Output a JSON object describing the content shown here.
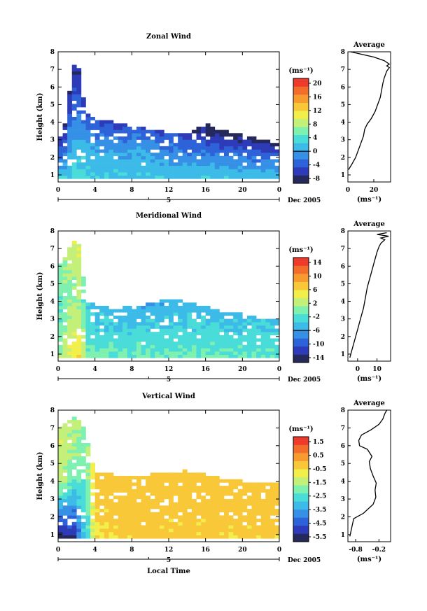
{
  "figure": {
    "colormap": [
      "#25285a",
      "#2d3bb8",
      "#2e62d8",
      "#3590e6",
      "#3cbbe8",
      "#49dcd8",
      "#7ef0b0",
      "#c4f07a",
      "#f2ee4a",
      "#f8c838",
      "#f79a30",
      "#f26c2c",
      "#ee3a2a"
    ],
    "date_label": "Dec 2005",
    "xlabel_bottom": "Local Time",
    "average_title": "Average",
    "unit_label": "(ms⁻¹)",
    "ylabel": "Height (km)"
  },
  "chart_data": [
    {
      "type": "heatmap",
      "title": "Zonal Wind",
      "xlabel": "",
      "ylabel": "Height (km)",
      "x_ticks": [
        "0",
        "4",
        "8",
        "12",
        "16",
        "20",
        "0"
      ],
      "x_range": [
        0,
        24
      ],
      "day_label": "5",
      "y_ticks": [
        "1",
        "2",
        "3",
        "4",
        "5",
        "6",
        "7",
        "8"
      ],
      "y_range": [
        0.6,
        8
      ],
      "colorbar": {
        "ticks": [
          "20",
          "16",
          "12",
          "8",
          "4",
          "0",
          "-4",
          "-8"
        ],
        "range": [
          -10,
          22
        ],
        "zero_line": 0
      },
      "grid": {
        "cols": 48,
        "top": 7.5,
        "heights": [
          1.0,
          1.4,
          2.0,
          3.0,
          4.0,
          5.0,
          6.0,
          7.0
        ],
        "cells": [
          [
            0,
            3,
            2,
            -4,
            -8
          ],
          [
            0.5,
            3.5,
            2,
            -4,
            -8
          ],
          [
            1,
            4.5,
            2,
            -3,
            -8
          ],
          [
            1.5,
            7.2,
            3,
            -2,
            -8
          ],
          [
            2,
            7.5,
            4,
            -2,
            -8
          ],
          [
            2.5,
            6.5,
            4,
            -1,
            -8
          ],
          [
            3,
            4.5,
            3,
            0,
            -6
          ],
          [
            4,
            4.2,
            2,
            0,
            -6
          ],
          [
            6,
            4.0,
            2,
            0,
            -6
          ],
          [
            8,
            3.8,
            2,
            0,
            -5
          ],
          [
            10,
            3.6,
            2,
            0,
            -5
          ],
          [
            12,
            3.4,
            2,
            -1,
            -5
          ],
          [
            14,
            3.3,
            2,
            -2,
            -6
          ],
          [
            16,
            3.9,
            2,
            -3,
            -9
          ],
          [
            18,
            3.5,
            2,
            -3,
            -9
          ],
          [
            20,
            3.3,
            2,
            -3,
            -9
          ],
          [
            22,
            3.0,
            2,
            -3,
            -9
          ],
          [
            24,
            2.8,
            2,
            -3,
            -9
          ]
        ]
      },
      "average": {
        "x_ticks": [
          "0",
          "20"
        ],
        "x_range": [
          0,
          33
        ],
        "xlabel": "(ms⁻¹)",
        "profile_x": [
          0.5,
          3,
          6,
          8,
          10,
          12,
          13,
          15,
          18,
          21,
          23,
          25,
          26,
          27,
          28,
          29,
          30,
          31,
          32,
          30,
          32,
          28,
          20,
          8,
          2
        ],
        "profile_h": [
          1.3,
          1.6,
          2.0,
          2.4,
          2.8,
          3.2,
          3.6,
          3.9,
          4.2,
          4.6,
          5.0,
          5.4,
          5.8,
          6.2,
          6.5,
          6.7,
          6.9,
          7.0,
          7.1,
          7.2,
          7.3,
          7.5,
          7.7,
          7.9,
          8.0
        ]
      }
    },
    {
      "type": "heatmap",
      "title": "Meridional Wind",
      "xlabel": "",
      "ylabel": "Height (km)",
      "x_ticks": [
        "0",
        "4",
        "8",
        "12",
        "16",
        "20",
        "0"
      ],
      "x_range": [
        0,
        24
      ],
      "day_label": "5",
      "y_ticks": [
        "1",
        "2",
        "3",
        "4",
        "5",
        "6",
        "7",
        "8"
      ],
      "y_range": [
        0.6,
        8
      ],
      "colorbar": {
        "ticks": [
          "14",
          "10",
          "6",
          "2",
          "-2",
          "-6",
          "-10",
          "-14"
        ],
        "range": [
          -16,
          16
        ],
        "zero_line": 0
      },
      "grid": {
        "cols": 48,
        "top": 7.6,
        "heights": [
          1.0,
          1.4,
          2.0,
          3.0,
          4.0,
          5.0,
          6.0,
          7.0
        ],
        "cells": [
          [
            0,
            6.0,
            1,
            -2,
            0
          ],
          [
            0.5,
            6.3,
            2,
            -1,
            1
          ],
          [
            1,
            6.6,
            4,
            0,
            2
          ],
          [
            1.5,
            7.4,
            5,
            1,
            3
          ],
          [
            2,
            7.6,
            6,
            1,
            4
          ],
          [
            2.5,
            7.0,
            6,
            1,
            3
          ],
          [
            3,
            4.0,
            0,
            -2,
            -4
          ],
          [
            4,
            3.8,
            0,
            -3,
            -5
          ],
          [
            6,
            3.6,
            -1,
            -3,
            -5
          ],
          [
            8,
            3.7,
            -1,
            -3,
            -6
          ],
          [
            10,
            3.9,
            -1,
            -3,
            -6
          ],
          [
            12,
            4.1,
            -1,
            -3,
            -6
          ],
          [
            14,
            4.0,
            -1,
            -3,
            -5
          ],
          [
            16,
            3.8,
            -1,
            -3,
            -5
          ],
          [
            18,
            3.4,
            -1,
            -3,
            -5
          ],
          [
            20,
            3.3,
            -1,
            -3,
            -5
          ],
          [
            22,
            3.0,
            -1,
            -3,
            -4
          ],
          [
            24,
            3.0,
            -1,
            -3,
            -4
          ]
        ]
      },
      "average": {
        "x_ticks": [
          "0",
          "10"
        ],
        "x_range": [
          -5,
          17
        ],
        "xlabel": "(ms⁻¹)",
        "profile_x": [
          -4,
          -3,
          -2,
          -1,
          0,
          1,
          2,
          3,
          4,
          5,
          6,
          7,
          8,
          9,
          10,
          11,
          12,
          14,
          12,
          16,
          10,
          15
        ],
        "profile_h": [
          0.8,
          1.2,
          1.6,
          2.0,
          2.4,
          2.8,
          3.2,
          3.6,
          4.2,
          4.8,
          5.2,
          5.6,
          6.0,
          6.4,
          6.8,
          7.1,
          7.3,
          7.5,
          7.6,
          7.7,
          7.8,
          7.9
        ]
      }
    },
    {
      "type": "heatmap",
      "title": "Vertical Wind",
      "xlabel": "Local Time",
      "ylabel": "Height (km)",
      "x_ticks": [
        "0",
        "4",
        "8",
        "12",
        "16",
        "20",
        "0"
      ],
      "x_range": [
        0,
        24
      ],
      "day_label": "5",
      "y_ticks": [
        "1",
        "2",
        "3",
        "4",
        "5",
        "6",
        "7",
        "8"
      ],
      "y_range": [
        0.6,
        8
      ],
      "colorbar": {
        "ticks": [
          "1.5",
          "0.5",
          "-0.5",
          "-1.5",
          "-2.5",
          "-3.5",
          "-4.5",
          "-5.5"
        ],
        "range": [
          -6,
          2
        ],
        "zero_line": null
      },
      "grid": {
        "cols": 48,
        "top": 7.8,
        "heights": [
          1.0,
          1.4,
          2.0,
          3.0,
          4.0,
          5.0,
          6.0,
          7.0
        ],
        "cells": [
          [
            0,
            7.0,
            -5.8,
            -1.5,
            -1.2
          ],
          [
            0.5,
            7.2,
            -5.8,
            -1.5,
            -1.2
          ],
          [
            1,
            7.3,
            -5.5,
            -1.8,
            -1.4
          ],
          [
            1.5,
            7.8,
            -5.5,
            -2.0,
            -1.5
          ],
          [
            2,
            7.6,
            -5.5,
            -2.0,
            -1.5
          ],
          [
            2.5,
            7.3,
            -3.0,
            -2.2,
            -1.8
          ],
          [
            3,
            6.8,
            -3.2,
            -2.5,
            -2.0
          ],
          [
            4,
            4.5,
            -0.5,
            -0.3,
            -0.2
          ],
          [
            6,
            4.4,
            -0.4,
            -0.2,
            -0.1
          ],
          [
            8,
            4.2,
            -0.3,
            -0.2,
            -0.1
          ],
          [
            10,
            4.4,
            -0.2,
            -0.2,
            -0.1
          ],
          [
            12,
            4.5,
            -0.3,
            -0.2,
            -0.1
          ],
          [
            14,
            4.6,
            -0.3,
            -0.2,
            -0.1
          ],
          [
            16,
            4.4,
            -0.3,
            -0.2,
            -0.1
          ],
          [
            18,
            4.2,
            -0.3,
            -0.2,
            -0.1
          ],
          [
            20,
            4.0,
            -0.3,
            -0.2,
            -0.1
          ],
          [
            22,
            4.0,
            -0.3,
            -0.2,
            -0.1
          ],
          [
            24,
            4.0,
            -0.3,
            -0.2,
            -0.1
          ]
        ]
      },
      "average": {
        "x_ticks": [
          "-0.8",
          "-0.2"
        ],
        "x_range": [
          -1.0,
          0.1
        ],
        "xlabel": "(ms⁻¹)",
        "profile_x": [
          -0.95,
          -0.9,
          -0.85,
          -0.6,
          -0.35,
          -0.28,
          -0.3,
          -0.27,
          -0.35,
          -0.42,
          -0.45,
          -0.38,
          -0.5,
          -0.7,
          -0.72,
          -0.65,
          -0.4,
          -0.2,
          -0.1,
          -0.05,
          0.0
        ],
        "profile_h": [
          0.9,
          1.4,
          1.9,
          2.2,
          2.7,
          3.1,
          3.5,
          3.9,
          4.3,
          4.7,
          5.1,
          5.4,
          5.8,
          6.0,
          6.3,
          6.6,
          6.9,
          7.2,
          7.5,
          7.8,
          8.0
        ]
      }
    }
  ]
}
